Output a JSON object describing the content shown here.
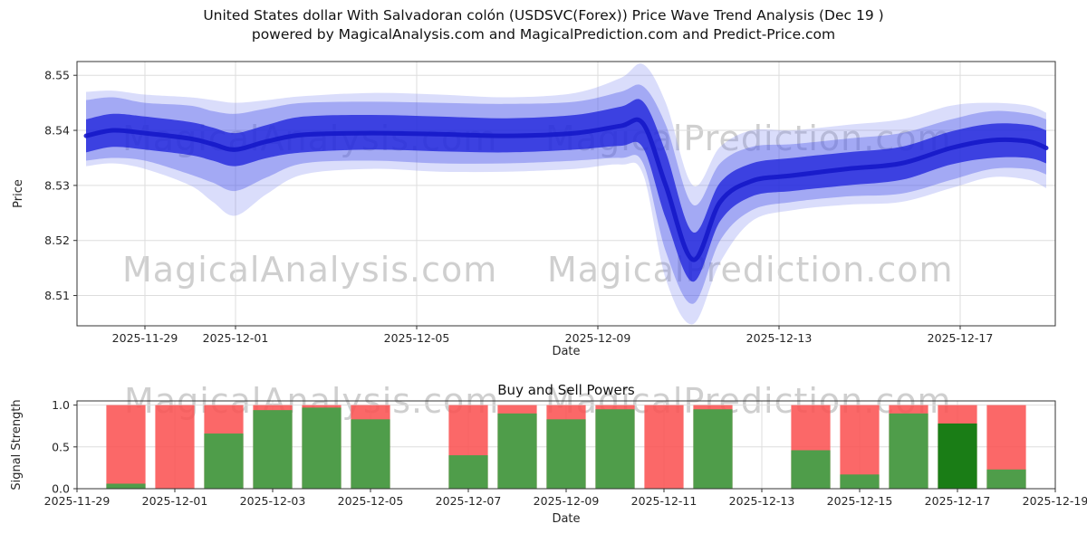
{
  "meta": {
    "title_line1": "United States dollar With Salvadoran colón (USDSVC(Forex)) Price Wave Trend Analysis (Dec 19 )",
    "title_line2": "powered by MagicalAnalysis.com and MagicalPrediction.com and Predict-Price.com"
  },
  "watermarks": {
    "analysis": "MagicalAnalysis.com",
    "prediction": "MagicalPrediction.com"
  },
  "chart_data": [
    {
      "type": "area",
      "name": "price-wave-trend",
      "xlabel": "Date",
      "ylabel": "Price",
      "x_range_days": [
        -1.5,
        20.1
      ],
      "y_range": [
        8.5045,
        8.5525
      ],
      "grid": true,
      "x_ticks": [
        {
          "d": 0,
          "label": "2025-11-29"
        },
        {
          "d": 2,
          "label": "2025-12-01"
        },
        {
          "d": 6,
          "label": "2025-12-05"
        },
        {
          "d": 10,
          "label": "2025-12-09"
        },
        {
          "d": 14,
          "label": "2025-12-13"
        },
        {
          "d": 18,
          "label": "2025-12-17"
        }
      ],
      "y_ticks": [
        {
          "v": 8.51,
          "label": "8.51"
        },
        {
          "v": 8.52,
          "label": "8.52"
        },
        {
          "v": 8.53,
          "label": "8.53"
        },
        {
          "v": 8.54,
          "label": "8.54"
        },
        {
          "v": 8.55,
          "label": "8.55"
        }
      ],
      "colors": {
        "outer": "#7b86f2",
        "mid": "#4a55ea",
        "inner": "#1f24db",
        "line": "#1518c9"
      },
      "points": [
        {
          "d": -1.3,
          "c": 8.539,
          "inner": [
            8.536,
            8.542
          ],
          "mid": [
            8.5345,
            8.5455
          ],
          "outer": [
            8.5335,
            8.547
          ]
        },
        {
          "d": -0.7,
          "c": 8.54,
          "inner": [
            8.537,
            8.543
          ],
          "mid": [
            8.535,
            8.546
          ],
          "outer": [
            8.534,
            8.5472
          ]
        },
        {
          "d": 0.0,
          "c": 8.5395,
          "inner": [
            8.5365,
            8.5425
          ],
          "mid": [
            8.5345,
            8.545
          ],
          "outer": [
            8.533,
            8.5465
          ]
        },
        {
          "d": 1.0,
          "c": 8.5385,
          "inner": [
            8.5355,
            8.5415
          ],
          "mid": [
            8.532,
            8.5445
          ],
          "outer": [
            8.53,
            8.546
          ]
        },
        {
          "d": 1.5,
          "c": 8.5375,
          "inner": [
            8.5345,
            8.5405
          ],
          "mid": [
            8.5305,
            8.5435
          ],
          "outer": [
            8.527,
            8.5455
          ]
        },
        {
          "d": 2.0,
          "c": 8.5365,
          "inner": [
            8.5335,
            8.5395
          ],
          "mid": [
            8.529,
            8.543
          ],
          "outer": [
            8.5245,
            8.545
          ]
        },
        {
          "d": 2.7,
          "c": 8.538,
          "inner": [
            8.535,
            8.541
          ],
          "mid": [
            8.5315,
            8.544
          ],
          "outer": [
            8.5285,
            8.5455
          ]
        },
        {
          "d": 3.5,
          "c": 8.5392,
          "inner": [
            8.536,
            8.5425
          ],
          "mid": [
            8.534,
            8.545
          ],
          "outer": [
            8.532,
            8.5462
          ]
        },
        {
          "d": 5.0,
          "c": 8.5395,
          "inner": [
            8.5365,
            8.5428
          ],
          "mid": [
            8.5345,
            8.5452
          ],
          "outer": [
            8.533,
            8.5468
          ]
        },
        {
          "d": 6.5,
          "c": 8.5393,
          "inner": [
            8.5362,
            8.5425
          ],
          "mid": [
            8.534,
            8.545
          ],
          "outer": [
            8.5325,
            8.5465
          ]
        },
        {
          "d": 8.0,
          "c": 8.539,
          "inner": [
            8.536,
            8.5422
          ],
          "mid": [
            8.534,
            8.5448
          ],
          "outer": [
            8.5325,
            8.546
          ]
        },
        {
          "d": 9.5,
          "c": 8.5395,
          "inner": [
            8.5365,
            8.5428
          ],
          "mid": [
            8.5345,
            8.5452
          ],
          "outer": [
            8.533,
            8.5468
          ]
        },
        {
          "d": 10.5,
          "c": 8.5408,
          "inner": [
            8.5372,
            8.5443
          ],
          "mid": [
            8.535,
            8.547
          ],
          "outer": [
            8.5338,
            8.5495
          ]
        },
        {
          "d": 11.0,
          "c": 8.5412,
          "inner": [
            8.5368,
            8.5452
          ],
          "mid": [
            8.534,
            8.548
          ],
          "outer": [
            8.532,
            8.552
          ]
        },
        {
          "d": 11.5,
          "c": 8.53,
          "inner": [
            8.524,
            8.536
          ],
          "mid": [
            8.518,
            8.541
          ],
          "outer": [
            8.513,
            8.545
          ]
        },
        {
          "d": 12.1,
          "c": 8.5165,
          "inner": [
            8.5125,
            8.5215
          ],
          "mid": [
            8.5085,
            8.5265
          ],
          "outer": [
            8.5048,
            8.53
          ]
        },
        {
          "d": 12.7,
          "c": 8.527,
          "inner": [
            8.5235,
            8.5305
          ],
          "mid": [
            8.52,
            8.534
          ],
          "outer": [
            8.516,
            8.537
          ]
        },
        {
          "d": 13.4,
          "c": 8.5308,
          "inner": [
            8.528,
            8.534
          ],
          "mid": [
            8.5255,
            8.537
          ],
          "outer": [
            8.5235,
            8.54
          ]
        },
        {
          "d": 14.3,
          "c": 8.5318,
          "inner": [
            8.529,
            8.535
          ],
          "mid": [
            8.527,
            8.5375
          ],
          "outer": [
            8.5255,
            8.54
          ]
        },
        {
          "d": 15.5,
          "c": 8.533,
          "inner": [
            8.53,
            8.536
          ],
          "mid": [
            8.528,
            8.5385
          ],
          "outer": [
            8.5265,
            8.541
          ]
        },
        {
          "d": 16.7,
          "c": 8.534,
          "inner": [
            8.531,
            8.537
          ],
          "mid": [
            8.5285,
            8.5395
          ],
          "outer": [
            8.527,
            8.542
          ]
        },
        {
          "d": 17.8,
          "c": 8.5368,
          "inner": [
            8.5338,
            8.5398
          ],
          "mid": [
            8.531,
            8.542
          ],
          "outer": [
            8.5295,
            8.5445
          ]
        },
        {
          "d": 18.7,
          "c": 8.5382,
          "inner": [
            8.535,
            8.5412
          ],
          "mid": [
            8.533,
            8.5435
          ],
          "outer": [
            8.5315,
            8.545
          ]
        },
        {
          "d": 19.5,
          "c": 8.538,
          "inner": [
            8.535,
            8.541
          ],
          "mid": [
            8.533,
            8.543
          ],
          "outer": [
            8.531,
            8.5445
          ]
        },
        {
          "d": 19.9,
          "c": 8.5368,
          "inner": [
            8.534,
            8.54
          ],
          "mid": [
            8.532,
            8.542
          ],
          "outer": [
            8.5295,
            8.5432
          ]
        }
      ]
    },
    {
      "type": "bar",
      "name": "buy-sell-powers",
      "title": "Buy and Sell Powers",
      "xlabel": "Date",
      "ylabel": "Signal Strength",
      "x_range_days": [
        0,
        20
      ],
      "y_range": [
        0,
        1.05
      ],
      "bar_width_days": 0.8,
      "grid": true,
      "x_ticks": [
        {
          "d": 0,
          "label": "2025-11-29"
        },
        {
          "d": 2,
          "label": "2025-12-01"
        },
        {
          "d": 4,
          "label": "2025-12-03"
        },
        {
          "d": 6,
          "label": "2025-12-05"
        },
        {
          "d": 8,
          "label": "2025-12-07"
        },
        {
          "d": 10,
          "label": "2025-12-09"
        },
        {
          "d": 12,
          "label": "2025-12-11"
        },
        {
          "d": 14,
          "label": "2025-12-13"
        },
        {
          "d": 16,
          "label": "2025-12-15"
        },
        {
          "d": 18,
          "label": "2025-12-17"
        },
        {
          "d": 20,
          "label": "2025-12-19"
        }
      ],
      "y_ticks": [
        {
          "v": 0,
          "label": "0.0"
        },
        {
          "v": 0.5,
          "label": "0.5"
        },
        {
          "v": 1,
          "label": "1.0"
        }
      ],
      "colors": {
        "sell": "#fb5353",
        "buy": "#46a049",
        "buy_dark": "#0e7e12"
      },
      "bars": [
        {
          "date": "2025-11-30",
          "d": 1,
          "sell": 1.0,
          "buy": 0.06
        },
        {
          "date": "2025-12-01",
          "d": 2,
          "sell": 1.0,
          "buy": 0.0
        },
        {
          "date": "2025-12-02",
          "d": 3,
          "sell": 1.0,
          "buy": 0.66
        },
        {
          "date": "2025-12-03",
          "d": 4,
          "sell": 1.0,
          "buy": 0.94
        },
        {
          "date": "2025-12-04",
          "d": 5,
          "sell": 1.0,
          "buy": 0.97
        },
        {
          "date": "2025-12-05",
          "d": 6,
          "sell": 1.0,
          "buy": 0.83
        },
        {
          "date": "2025-12-07",
          "d": 8,
          "sell": 1.0,
          "buy": 0.4
        },
        {
          "date": "2025-12-08",
          "d": 9,
          "sell": 1.0,
          "buy": 0.9
        },
        {
          "date": "2025-12-09",
          "d": 10,
          "sell": 1.0,
          "buy": 0.83
        },
        {
          "date": "2025-12-10",
          "d": 11,
          "sell": 1.0,
          "buy": 0.95
        },
        {
          "date": "2025-12-11",
          "d": 12,
          "sell": 1.0,
          "buy": 0.0
        },
        {
          "date": "2025-12-12",
          "d": 13,
          "sell": 1.0,
          "buy": 0.95
        },
        {
          "date": "2025-12-14",
          "d": 15,
          "sell": 1.0,
          "buy": 0.46
        },
        {
          "date": "2025-12-15",
          "d": 16,
          "sell": 1.0,
          "buy": 0.17
        },
        {
          "date": "2025-12-16",
          "d": 17,
          "sell": 1.0,
          "buy": 0.9
        },
        {
          "date": "2025-12-17",
          "d": 18,
          "sell": 1.0,
          "buy": 0.78,
          "dark": true
        },
        {
          "date": "2025-12-18",
          "d": 19,
          "sell": 1.0,
          "buy": 0.23
        }
      ]
    }
  ]
}
